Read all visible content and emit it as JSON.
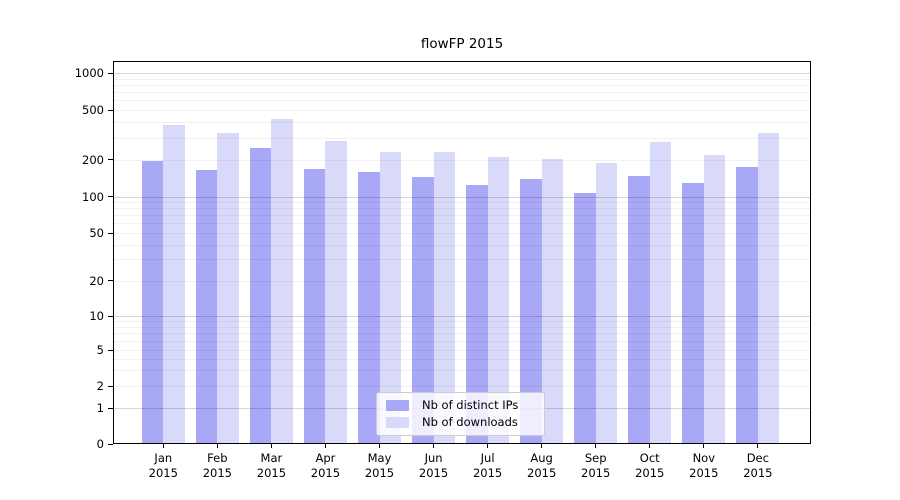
{
  "title": "flowFP 2015",
  "chart_data": {
    "type": "bar",
    "title": "flowFP 2015",
    "categories": [
      "Jan",
      "Feb",
      "Mar",
      "Apr",
      "May",
      "Jun",
      "Jul",
      "Aug",
      "Sep",
      "Oct",
      "Nov",
      "Dec"
    ],
    "year_label": "2015",
    "series": [
      {
        "name": "Nb of distinct IPs",
        "color": "#a8a8f7",
        "values": [
          196,
          163,
          246,
          167,
          159,
          143,
          124,
          139,
          106,
          147,
          129,
          175
        ]
      },
      {
        "name": "Nb of downloads",
        "color": "#d9d9fa",
        "values": [
          380,
          325,
          420,
          282,
          228,
          231,
          208,
          203,
          188,
          278,
          219,
          328
        ]
      }
    ],
    "y_ticks": [
      0,
      1,
      2,
      5,
      10,
      20,
      50,
      100,
      200,
      500,
      1000
    ],
    "ylim": [
      0,
      1000
    ],
    "yscale": "symlog",
    "grid": "horizontal",
    "gridline_major_values": [
      1,
      10,
      100,
      1000
    ],
    "legend_position": "lower center",
    "colors": {
      "ips_bar": "#a8a8f7",
      "downloads_bar": "#d9d9fa",
      "spine": "#000000"
    }
  }
}
